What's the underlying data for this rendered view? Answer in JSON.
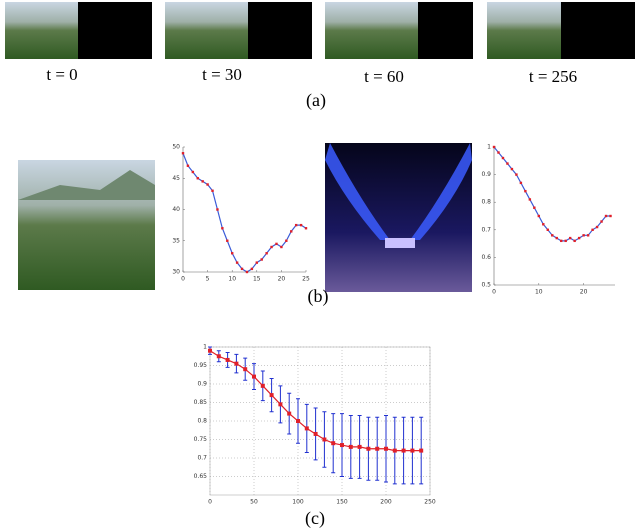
{
  "panel_a": {
    "labels": [
      "t = 0",
      "t = 30",
      "t = 60",
      "t = 256"
    ],
    "caption": "(a)"
  },
  "panel_b": {
    "caption": "(b)"
  },
  "panel_c": {
    "caption": "(c)"
  },
  "chart_data": [
    {
      "type": "line",
      "x": [
        0,
        1,
        2,
        3,
        4,
        5,
        6,
        7,
        8,
        9,
        10,
        11,
        12,
        13,
        14,
        15,
        16,
        17,
        18,
        19,
        20,
        21,
        22,
        23,
        24,
        25
      ],
      "series": [
        {
          "color": "#3a5bd8",
          "marker_color": "#e0202a",
          "values": [
            49,
            47,
            46,
            45,
            44.5,
            44,
            43,
            40,
            37,
            35,
            33,
            31.5,
            30.5,
            30,
            30.5,
            31.5,
            32,
            33,
            34,
            34.5,
            34,
            35,
            36.5,
            37.5,
            37.5,
            37
          ]
        }
      ],
      "xlim": [
        0,
        25
      ],
      "xticks": [
        0,
        5,
        10,
        15,
        20,
        25
      ],
      "ylim": [
        30,
        50
      ],
      "yticks": [
        30,
        35,
        40,
        45,
        50
      ],
      "grid": false
    },
    {
      "type": "line",
      "x": [
        0,
        1,
        2,
        3,
        4,
        5,
        6,
        7,
        8,
        9,
        10,
        11,
        12,
        13,
        14,
        15,
        16,
        17,
        18,
        19,
        20,
        21,
        22,
        23,
        24,
        25,
        26
      ],
      "series": [
        {
          "color": "#3a5bd8",
          "marker_color": "#e0202a",
          "values": [
            1.0,
            0.98,
            0.96,
            0.94,
            0.92,
            0.9,
            0.87,
            0.84,
            0.81,
            0.78,
            0.75,
            0.72,
            0.7,
            0.68,
            0.67,
            0.66,
            0.66,
            0.67,
            0.66,
            0.67,
            0.68,
            0.68,
            0.7,
            0.71,
            0.73,
            0.75,
            0.75
          ]
        }
      ],
      "xlim": [
        0,
        27
      ],
      "xticks": [
        0,
        10,
        20
      ],
      "ylim": [
        0.5,
        1
      ],
      "yticks": [
        0.5,
        0.6,
        0.7,
        0.8,
        0.9,
        1
      ],
      "grid": false
    },
    {
      "type": "errorbar",
      "x": [
        0,
        10,
        20,
        30,
        40,
        50,
        60,
        70,
        80,
        90,
        100,
        110,
        120,
        130,
        140,
        150,
        160,
        170,
        180,
        190,
        200,
        210,
        220,
        230,
        240
      ],
      "series": [
        {
          "color": "#e0202a",
          "marker_color": "#e0202a",
          "error_color": "#2030d0",
          "values": [
            0.99,
            0.975,
            0.965,
            0.955,
            0.94,
            0.92,
            0.895,
            0.87,
            0.845,
            0.82,
            0.8,
            0.78,
            0.765,
            0.75,
            0.74,
            0.735,
            0.73,
            0.73,
            0.725,
            0.725,
            0.725,
            0.72,
            0.72,
            0.72,
            0.72
          ],
          "errors": [
            0.01,
            0.015,
            0.02,
            0.025,
            0.03,
            0.035,
            0.04,
            0.045,
            0.05,
            0.055,
            0.06,
            0.065,
            0.07,
            0.075,
            0.08,
            0.085,
            0.085,
            0.085,
            0.085,
            0.085,
            0.09,
            0.09,
            0.09,
            0.09,
            0.09
          ]
        }
      ],
      "xlim": [
        0,
        250
      ],
      "xticks": [
        0,
        50,
        100,
        150,
        200,
        250
      ],
      "ylim": [
        0.6,
        1
      ],
      "yticks": [
        0.65,
        0.7,
        0.75,
        0.8,
        0.85,
        0.9,
        0.95,
        1
      ],
      "grid": true
    }
  ]
}
